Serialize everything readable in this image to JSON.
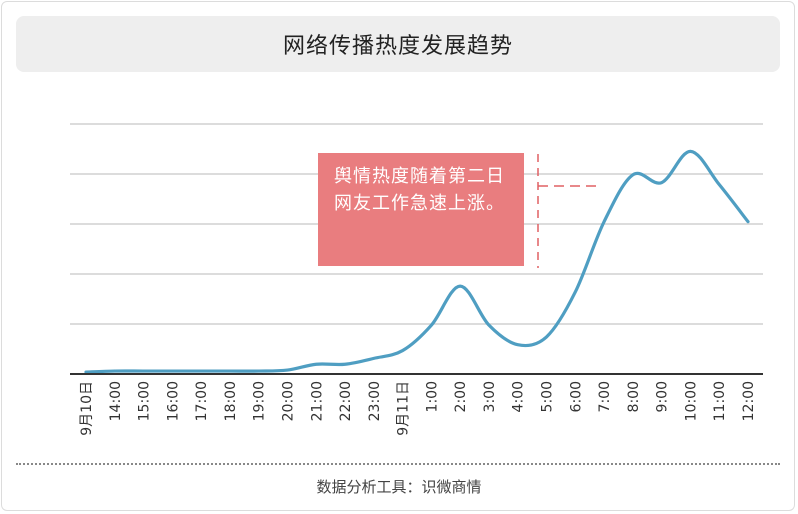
{
  "title": "网络传播热度发展趋势",
  "source": "数据分析工具：识微商情",
  "annotation": "舆情热度随着第二日网友工作急速上涨。",
  "colors": {
    "line": "#4f9ec2",
    "grid": "#c8c8c8",
    "axis": "#333333",
    "annotation_bg": "#e97d7f",
    "annotation_marker": "#e06064",
    "title_bg": "#eeeeee"
  },
  "chart_data": {
    "type": "line",
    "categories": [
      "9月10日",
      "14:00",
      "15:00",
      "16:00",
      "17:00",
      "18:00",
      "19:00",
      "20:00",
      "21:00",
      "22:00",
      "23:00",
      "9月11日",
      "1:00",
      "2:00",
      "3:00",
      "4:00",
      "5:00",
      "6:00",
      "7:00",
      "8:00",
      "9:00",
      "10:00",
      "11:00",
      "12:00"
    ],
    "values": [
      1,
      1.5,
      1.5,
      1.5,
      1.5,
      1.5,
      1.5,
      2,
      5,
      5,
      8,
      12,
      25,
      45,
      25,
      15,
      19,
      42,
      78,
      102,
      98,
      114,
      97,
      78
    ],
    "ylim": [
      0,
      128
    ],
    "grid_lines": 5,
    "title": "",
    "xlabel": "",
    "ylabel": ""
  }
}
